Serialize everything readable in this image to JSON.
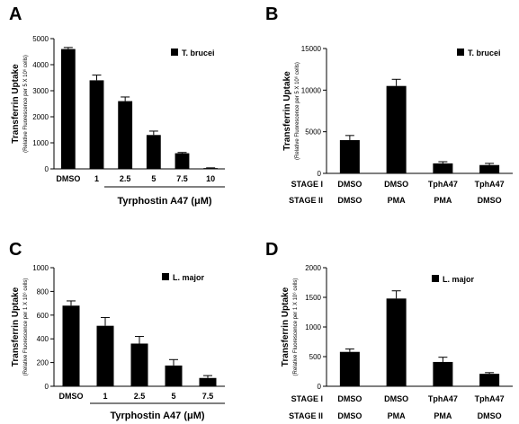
{
  "figure": {
    "panels": [
      "A",
      "B",
      "C",
      "D"
    ]
  },
  "chart_data": [
    {
      "panel": "A",
      "type": "bar",
      "categories": [
        "DMSO",
        "1",
        "2.5",
        "5",
        "7.5",
        "10"
      ],
      "series": [
        {
          "name": "T. brucei",
          "values": [
            4600,
            3400,
            2600,
            1300,
            600,
            30
          ],
          "errors": [
            60,
            200,
            160,
            150,
            30,
            10
          ]
        }
      ],
      "ylabel": "Transferrin Uptake",
      "ylabel_sub": "(Relative Fluorescence per 5 X 10⁶ cells)",
      "xlabel": "Tyrphostin A47 (μM)",
      "ylim": [
        0,
        5000
      ],
      "yticks": [
        0,
        1000,
        2000,
        3000,
        4000,
        5000
      ],
      "legend_position": "top-right",
      "color": "#000000"
    },
    {
      "panel": "B",
      "type": "bar",
      "categories": [
        "DMSO|DMSO",
        "DMSO|PMA",
        "TphA47|PMA",
        "TphA47|DMSO"
      ],
      "stage_rows": [
        {
          "label": "STAGE I",
          "values": [
            "DMSO",
            "DMSO",
            "TphA47",
            "TphA47"
          ]
        },
        {
          "label": "STAGE II",
          "values": [
            "DMSO",
            "PMA",
            "PMA",
            "DMSO"
          ]
        }
      ],
      "series": [
        {
          "name": "T. brucei",
          "values": [
            4000,
            10500,
            1200,
            1000
          ],
          "errors": [
            550,
            800,
            200,
            200
          ]
        }
      ],
      "ylabel": "Transferrin Uptake",
      "ylabel_sub": "(Relative Fluorescence per 5 X 10⁶ cells)",
      "ylim": [
        0,
        15000
      ],
      "yticks": [
        0,
        5000,
        10000,
        15000
      ],
      "legend_position": "top-right",
      "color": "#000000"
    },
    {
      "panel": "C",
      "type": "bar",
      "categories": [
        "DMSO",
        "1",
        "2.5",
        "5",
        "7.5"
      ],
      "series": [
        {
          "name": "L. major",
          "values": [
            680,
            510,
            360,
            175,
            70
          ],
          "errors": [
            40,
            70,
            60,
            50,
            20
          ]
        }
      ],
      "ylabel": "Transferrin Uptake",
      "ylabel_sub": "(Relative Fluorescence per 1 X 10⁶ cells)",
      "xlabel": "Tyrphostin A47 (μM)",
      "ylim": [
        0,
        1000
      ],
      "yticks": [
        0,
        200,
        400,
        600,
        800,
        1000
      ],
      "legend_position": "top-right",
      "color": "#000000"
    },
    {
      "panel": "D",
      "type": "bar",
      "categories": [
        "DMSO|DMSO",
        "DMSO|PMA",
        "TphA47|PMA",
        "TphA47|DMSO"
      ],
      "stage_rows": [
        {
          "label": "STAGE I",
          "values": [
            "DMSO",
            "DMSO",
            "TphA47",
            "TphA47"
          ]
        },
        {
          "label": "STAGE II",
          "values": [
            "DMSO",
            "PMA",
            "PMA",
            "DMSO"
          ]
        }
      ],
      "series": [
        {
          "name": "L. major",
          "values": [
            580,
            1480,
            410,
            210
          ],
          "errors": [
            50,
            130,
            80,
            20
          ]
        }
      ],
      "ylabel": "Transferrin Uptake",
      "ylabel_sub": "(Relative Fluorescence per 1 X 10⁶ cells)",
      "ylim": [
        0,
        2000
      ],
      "yticks": [
        0,
        500,
        1000,
        1500,
        2000
      ],
      "legend_position": "top-right",
      "color": "#000000"
    }
  ]
}
